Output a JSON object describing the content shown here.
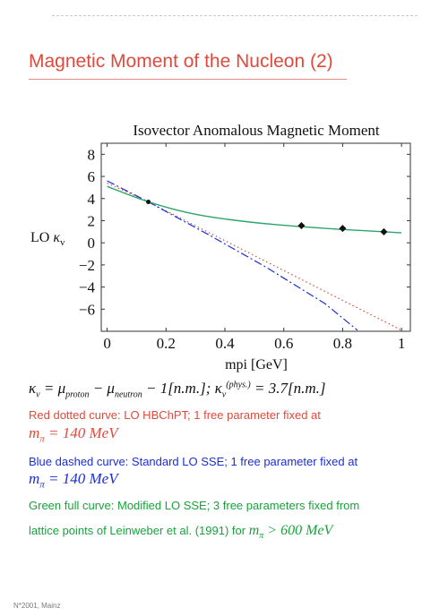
{
  "slide": {
    "title": "Magnetic Moment of the Nucleon (2)",
    "footer": "N*2001, Mainz"
  },
  "colors": {
    "title": "#e04a3c",
    "red_text": "#e04a3c",
    "blue_text": "#1a2fd6",
    "green_text": "#17a33a"
  },
  "chart_data": {
    "type": "line",
    "title": "Isovector Anomalous Magnetic Moment",
    "xlabel": "mpi [GeV]",
    "ylabel": "LO κ_v",
    "xlim": [
      -0.02,
      1.03
    ],
    "ylim": [
      -8,
      9
    ],
    "xticks": [
      "0",
      "0.2",
      "0.4",
      "0.6",
      "0.8",
      "1"
    ],
    "xtick_values": [
      0,
      0.2,
      0.4,
      0.6,
      0.8,
      1
    ],
    "yticks": [
      "8",
      "6",
      "4",
      "2",
      "0",
      "−2",
      "−4",
      "−6"
    ],
    "ytick_values": [
      8,
      6,
      4,
      2,
      0,
      -2,
      -4,
      -6
    ],
    "series": [
      {
        "name": "LO HBChPT",
        "style": "dotted",
        "color": "#e04a3c",
        "x": [
          0.0,
          0.14,
          1.0
        ],
        "y": [
          5.4,
          3.7,
          -7.9
        ]
      },
      {
        "name": "Standard LO SSE",
        "style": "dashdot",
        "color": "#1a2fd6",
        "x": [
          0.0,
          0.14,
          0.34,
          0.54,
          0.74,
          0.85
        ],
        "y": [
          5.6,
          3.7,
          0.8,
          -2.2,
          -5.5,
          -7.9
        ]
      },
      {
        "name": "Modified LO SSE",
        "style": "solid",
        "color": "#2aa66a",
        "x": [
          0.0,
          0.14,
          0.3,
          0.5,
          0.66,
          0.8,
          0.94,
          1.0
        ],
        "y": [
          5.1,
          3.65,
          2.5,
          1.8,
          1.45,
          1.2,
          1.0,
          0.9
        ]
      }
    ],
    "points": [
      {
        "x": 0.14,
        "y": 3.7,
        "kind": "physical-point"
      },
      {
        "x": 0.66,
        "y": 1.55,
        "kind": "lattice"
      },
      {
        "x": 0.8,
        "y": 1.3,
        "kind": "lattice"
      },
      {
        "x": 0.94,
        "y": 1.0,
        "kind": "lattice"
      }
    ],
    "grid": false
  },
  "formula": {
    "lhs": "κ",
    "lhs_sub": "v",
    "eq1": " = μ",
    "mu_p_sub": "proton",
    "minus": " − μ",
    "mu_n_sub": "neutron",
    "rest": " − 1[n.m.];  κ",
    "kappa_sub": "v",
    "kappa_sup": "(phys.)",
    "value": " = 3.7[n.m.]"
  },
  "captions": {
    "red_line1": "Red dotted curve: LO HBChPT; 1 free parameter fixed at",
    "red_math": "m",
    "red_math_sub": "π",
    "red_math_value": " = 140 MeV",
    "blue_line1": "Blue dashed curve: Standard LO SSE; 1 free parameter fixed at",
    "blue_math": "m",
    "blue_math_sub": "π",
    "blue_math_value": " = 140 MeV",
    "green_line1": "Green full curve: Modified LO SSE; 3 free parameters fixed from",
    "green_line2": "lattice points of Leinweber et al. (1991) for ",
    "green_math": "m",
    "green_math_sub": "π",
    "green_math_value": " > 600 MeV"
  }
}
